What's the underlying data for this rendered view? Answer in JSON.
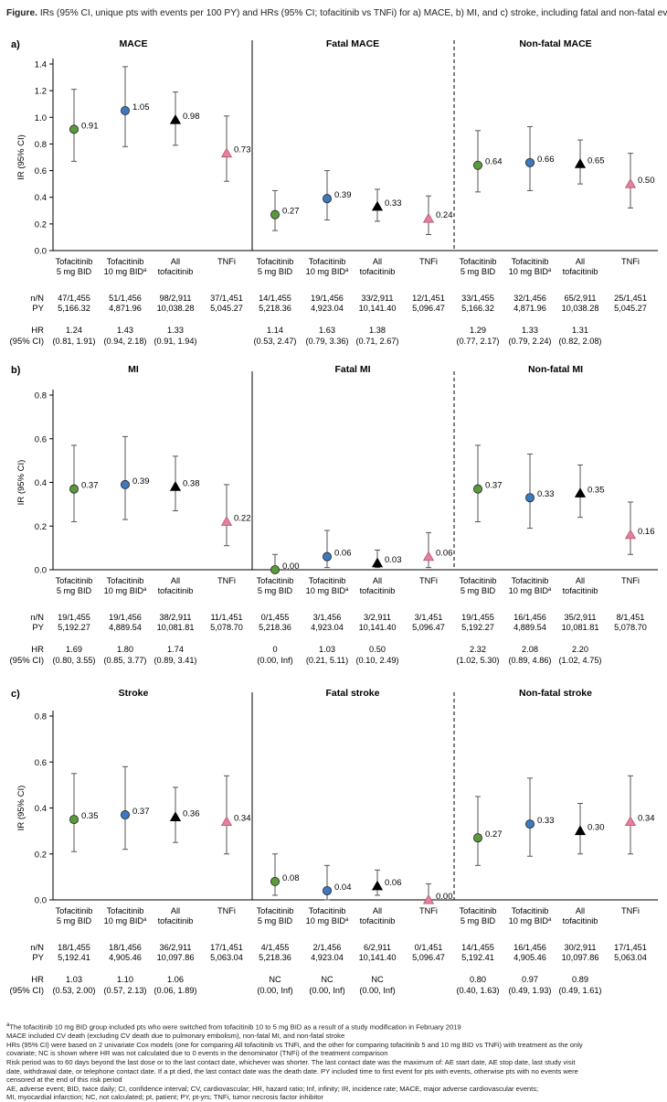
{
  "figure": {
    "label": "Figure.",
    "caption": "IRs (95% CI, unique pts with events per 100 PY) and HRs (95% CI; tofacitinib vs TNFi) for a) MACE, b) MI, and c) stroke, including fatal and non-fatal events"
  },
  "colors": {
    "green": "#5a9a3c",
    "blue": "#3d78c1",
    "black": "#000000",
    "pink": "#e87f9c",
    "grid": "#000000"
  },
  "groups": [
    {
      "label_line1": "Tofacitinib",
      "label_line2": "5 mg BID",
      "sup": "",
      "marker": "circle",
      "color": "#5a9a3c"
    },
    {
      "label_line1": "Tofacitinib",
      "label_line2": "10 mg BID",
      "sup": "a",
      "marker": "circle",
      "color": "#3d78c1"
    },
    {
      "label_line1": "All",
      "label_line2": "tofacitinib",
      "sup": "",
      "marker": "triangle",
      "color": "#000000"
    },
    {
      "label_line1": "TNFi",
      "label_line2": "",
      "sup": "",
      "marker": "triangle",
      "color": "#e87f9c"
    }
  ],
  "row_labels": {
    "nN": "n/N",
    "PY": "PY",
    "HR": "HR",
    "CI": "(95% CI)"
  },
  "chart_data": [
    {
      "type": "scatter",
      "panel_label": "a)",
      "ylabel": "IR (95% CI)",
      "ylim": [
        0,
        1.4
      ],
      "yticks": [
        "0.0",
        "0.2",
        "0.4",
        "0.6",
        "0.8",
        "1.0",
        "1.2",
        "1.4"
      ],
      "subplots": [
        {
          "title": "MACE",
          "points": [
            {
              "ir": 0.91,
              "lo": 0.67,
              "hi": 1.21,
              "label": "0.91"
            },
            {
              "ir": 1.05,
              "lo": 0.78,
              "hi": 1.38,
              "label": "1.05"
            },
            {
              "ir": 0.98,
              "lo": 0.79,
              "hi": 1.19,
              "label": "0.98"
            },
            {
              "ir": 0.73,
              "lo": 0.52,
              "hi": 1.01,
              "label": "0.73"
            }
          ],
          "nN": [
            "47/1,455",
            "51/1,456",
            "98/2,911",
            "37/1,451"
          ],
          "PY": [
            "5,166.32",
            "4,871.96",
            "10,038.28",
            "5,045.27"
          ],
          "HR": [
            "1.24",
            "1.43",
            "1.33",
            ""
          ],
          "CI": [
            "(0.81, 1.91)",
            "(0.94, 2.18)",
            "(0.91, 1.94)",
            ""
          ]
        },
        {
          "title": "Fatal MACE",
          "points": [
            {
              "ir": 0.27,
              "lo": 0.15,
              "hi": 0.45,
              "label": "0.27"
            },
            {
              "ir": 0.39,
              "lo": 0.23,
              "hi": 0.6,
              "label": "0.39"
            },
            {
              "ir": 0.33,
              "lo": 0.22,
              "hi": 0.46,
              "label": "0.33"
            },
            {
              "ir": 0.24,
              "lo": 0.12,
              "hi": 0.41,
              "label": "0.24"
            }
          ],
          "nN": [
            "14/1,455",
            "19/1,456",
            "33/2,911",
            "12/1,451"
          ],
          "PY": [
            "5,218.36",
            "4,923.04",
            "10,141.40",
            "5,096.47"
          ],
          "HR": [
            "1.14",
            "1.63",
            "1.38",
            ""
          ],
          "CI": [
            "(0.53, 2.47)",
            "(0.79, 3.36)",
            "(0.71, 2.67)",
            ""
          ]
        },
        {
          "title": "Non-fatal MACE",
          "points": [
            {
              "ir": 0.64,
              "lo": 0.44,
              "hi": 0.9,
              "label": "0.64"
            },
            {
              "ir": 0.66,
              "lo": 0.45,
              "hi": 0.93,
              "label": "0.66"
            },
            {
              "ir": 0.65,
              "lo": 0.5,
              "hi": 0.83,
              "label": "0.65"
            },
            {
              "ir": 0.5,
              "lo": 0.32,
              "hi": 0.73,
              "label": "0.50"
            }
          ],
          "nN": [
            "33/1,455",
            "32/1,456",
            "65/2,911",
            "25/1,451"
          ],
          "PY": [
            "5,166.32",
            "4,871.96",
            "10,038.28",
            "5,045.27"
          ],
          "HR": [
            "1.29",
            "1.33",
            "1.31",
            ""
          ],
          "CI": [
            "(0.77, 2.17)",
            "(0.79, 2.24)",
            "(0.82, 2.08)",
            ""
          ]
        }
      ]
    },
    {
      "type": "scatter",
      "panel_label": "b)",
      "ylabel": "IR (95% CI)",
      "ylim": [
        0,
        0.8
      ],
      "yticks": [
        "0.0",
        "0.2",
        "0.4",
        "0.6",
        "0.8"
      ],
      "subplots": [
        {
          "title": "MI",
          "points": [
            {
              "ir": 0.37,
              "lo": 0.22,
              "hi": 0.57,
              "label": "0.37"
            },
            {
              "ir": 0.39,
              "lo": 0.23,
              "hi": 0.61,
              "label": "0.39"
            },
            {
              "ir": 0.38,
              "lo": 0.27,
              "hi": 0.52,
              "label": "0.38"
            },
            {
              "ir": 0.22,
              "lo": 0.11,
              "hi": 0.39,
              "label": "0.22"
            }
          ],
          "nN": [
            "19/1,455",
            "19/1,456",
            "38/2,911",
            "11/1,451"
          ],
          "PY": [
            "5,192.27",
            "4,889.54",
            "10,081.81",
            "5,078.70"
          ],
          "HR": [
            "1.69",
            "1.80",
            "1.74",
            ""
          ],
          "CI": [
            "(0.80, 3.55)",
            "(0.85, 3.77)",
            "(0.89, 3.41)",
            ""
          ]
        },
        {
          "title": "Fatal MI",
          "points": [
            {
              "ir": 0.0,
              "lo": 0.0,
              "hi": 0.07,
              "label": "0.00"
            },
            {
              "ir": 0.06,
              "lo": 0.01,
              "hi": 0.18,
              "label": "0.06"
            },
            {
              "ir": 0.03,
              "lo": 0.01,
              "hi": 0.09,
              "label": "0.03"
            },
            {
              "ir": 0.06,
              "lo": 0.01,
              "hi": 0.17,
              "label": "0.06"
            }
          ],
          "nN": [
            "0/1,455",
            "3/1,456",
            "3/2,911",
            "3/1,451"
          ],
          "PY": [
            "5,218.36",
            "4,923.04",
            "10,141.40",
            "5,096.47"
          ],
          "HR": [
            "0",
            "1.03",
            "0.50",
            ""
          ],
          "CI": [
            "(0.00, Inf)",
            "(0.21, 5.11)",
            "(0.10, 2.49)",
            ""
          ]
        },
        {
          "title": "Non-fatal MI",
          "points": [
            {
              "ir": 0.37,
              "lo": 0.22,
              "hi": 0.57,
              "label": "0.37"
            },
            {
              "ir": 0.33,
              "lo": 0.19,
              "hi": 0.53,
              "label": "0.33"
            },
            {
              "ir": 0.35,
              "lo": 0.24,
              "hi": 0.48,
              "label": "0.35"
            },
            {
              "ir": 0.16,
              "lo": 0.07,
              "hi": 0.31,
              "label": "0.16"
            }
          ],
          "nN": [
            "19/1,455",
            "16/1,456",
            "35/2,911",
            "8/1,451"
          ],
          "PY": [
            "5,192.27",
            "4,889.54",
            "10,081.81",
            "5,078.70"
          ],
          "HR": [
            "2.32",
            "2.08",
            "2.20",
            ""
          ],
          "CI": [
            "(1.02, 5.30)",
            "(0.89, 4.86)",
            "(1.02, 4.75)",
            ""
          ]
        }
      ]
    },
    {
      "type": "scatter",
      "panel_label": "c)",
      "ylabel": "IR (95% CI)",
      "ylim": [
        0,
        0.8
      ],
      "yticks": [
        "0.0",
        "0.2",
        "0.4",
        "0.6",
        "0.8"
      ],
      "subplots": [
        {
          "title": "Stroke",
          "points": [
            {
              "ir": 0.35,
              "lo": 0.21,
              "hi": 0.55,
              "label": "0.35"
            },
            {
              "ir": 0.37,
              "lo": 0.22,
              "hi": 0.58,
              "label": "0.37"
            },
            {
              "ir": 0.36,
              "lo": 0.25,
              "hi": 0.49,
              "label": "0.36"
            },
            {
              "ir": 0.34,
              "lo": 0.2,
              "hi": 0.54,
              "label": "0.34"
            }
          ],
          "nN": [
            "18/1,455",
            "18/1,456",
            "36/2,911",
            "17/1,451"
          ],
          "PY": [
            "5,192.41",
            "4,905.46",
            "10,097.86",
            "5,063.04"
          ],
          "HR": [
            "1.03",
            "1.10",
            "1.06",
            ""
          ],
          "CI": [
            "(0.53, 2.00)",
            "(0.57, 2.13)",
            "(0.06, 1.89)",
            ""
          ]
        },
        {
          "title": "Fatal stroke",
          "points": [
            {
              "ir": 0.08,
              "lo": 0.02,
              "hi": 0.2,
              "label": "0.08"
            },
            {
              "ir": 0.04,
              "lo": 0.0,
              "hi": 0.15,
              "label": "0.04"
            },
            {
              "ir": 0.06,
              "lo": 0.02,
              "hi": 0.13,
              "label": "0.06"
            },
            {
              "ir": 0.0,
              "lo": 0.0,
              "hi": 0.07,
              "label": "0.00"
            }
          ],
          "nN": [
            "4/1,455",
            "2/1,456",
            "6/2,911",
            "0/1,451"
          ],
          "PY": [
            "5,218.36",
            "4,923.04",
            "10,141.40",
            "5,096.47"
          ],
          "HR": [
            "NC",
            "NC",
            "NC",
            ""
          ],
          "CI": [
            "(0.00, Inf)",
            "(0.00, Inf)",
            "(0.00, Inf)",
            ""
          ]
        },
        {
          "title": "Non-fatal stroke",
          "points": [
            {
              "ir": 0.27,
              "lo": 0.15,
              "hi": 0.45,
              "label": "0.27"
            },
            {
              "ir": 0.33,
              "lo": 0.19,
              "hi": 0.53,
              "label": "0.33"
            },
            {
              "ir": 0.3,
              "lo": 0.2,
              "hi": 0.42,
              "label": "0.30"
            },
            {
              "ir": 0.34,
              "lo": 0.2,
              "hi": 0.54,
              "label": "0.34"
            }
          ],
          "nN": [
            "14/1,455",
            "16/1,456",
            "30/2,911",
            "17/1,451"
          ],
          "PY": [
            "5,192.41",
            "4,905.46",
            "10,097.86",
            "5,063.04"
          ],
          "HR": [
            "0.80",
            "0.97",
            "0.89",
            ""
          ],
          "CI": [
            "(0.40, 1.63)",
            "(0.49, 1.93)",
            "(0.49, 1.61)",
            ""
          ]
        }
      ]
    }
  ],
  "footnotes": {
    "a_sup": "a",
    "a": "The tofacitinib 10 mg BID group included pts who were switched from tofacitinib 10 to 5 mg BID as a result of a study modification in February 2019",
    "mace": "MACE included CV death (excluding CV death due to pulmonary embolism), non-fatal MI, and non-fatal stroke",
    "hrs1": "HRs (95% CI) were based on 2 univariate Cox models (one for comparing All tofacitinib vs TNFi, and the other for comparing tofacitinib 5 and 10 mg BID vs TNFi) with treatment as the only",
    "hrs2": "covariate; NC is shown where HR was not calculated due to 0 events in the denominator (TNFi) of the treatment comparison",
    "risk1": "Risk period was to 60 days beyond the last dose or to the last contact date, whichever was shorter. The last contact date was the maximum of: AE start date, AE stop date, last study visit",
    "risk2": "date, withdrawal date, or telephone contact date. If a pt died, the last contact date was the death date. PY included time to first event for pts with events, otherwise pts with no events were",
    "risk3": "censored at the end of this risk period",
    "abbr1": "AE, adverse event; BID, twice daily; CI, confidence interval; CV, cardiovascular; HR, hazard ratio; Inf, infinity; IR, incidence rate; MACE, major adverse cardiovascular events;",
    "abbr2": "MI, myocardial infarction; NC, not calculated; pt, patient; PY, pt-yrs; TNFi, tumor necrosis factor inhibitor"
  }
}
